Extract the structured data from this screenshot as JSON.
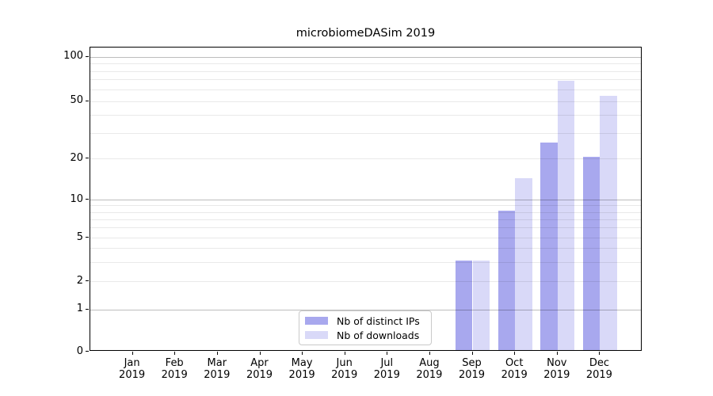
{
  "chart_data": {
    "type": "bar",
    "title": "microbiomeDASim 2019",
    "categories": [
      "Jan",
      "Feb",
      "Mar",
      "Apr",
      "May",
      "Jun",
      "Jul",
      "Aug",
      "Sep",
      "Oct",
      "Nov",
      "Dec"
    ],
    "year_label": "2019",
    "series": [
      {
        "name": "Nb of distinct IPs",
        "color": "#a8a8ee",
        "values": [
          0,
          0,
          0,
          0,
          0,
          0,
          0,
          0,
          3,
          8,
          25,
          20
        ]
      },
      {
        "name": "Nb of downloads",
        "color": "#d9d9f8",
        "values": [
          0,
          0,
          0,
          0,
          0,
          0,
          0,
          0,
          3,
          14,
          67,
          53
        ]
      }
    ],
    "y_axis": {
      "scale": "log-with-zero",
      "tick_labels": [
        "100",
        "50",
        "20",
        "10",
        "5",
        "2",
        "1",
        "0"
      ],
      "tick_values": [
        100,
        50,
        20,
        10,
        5,
        2,
        1,
        0
      ],
      "major_gridlines": [
        1,
        10,
        100
      ],
      "minor_gridlines": [
        2,
        3,
        4,
        5,
        6,
        7,
        8,
        9,
        20,
        30,
        40,
        50,
        60,
        70,
        80,
        90
      ],
      "ylim": [
        0,
        116
      ]
    },
    "x_axis": {
      "xlim_units": [
        -1,
        12
      ],
      "bar_width_units": 0.4
    },
    "legend": {
      "position": "lower center",
      "items": [
        {
          "label": "Nb of distinct IPs",
          "color": "#a8a8ee"
        },
        {
          "label": "Nb of downloads",
          "color": "#d9d9f8"
        }
      ]
    },
    "grid": true
  }
}
